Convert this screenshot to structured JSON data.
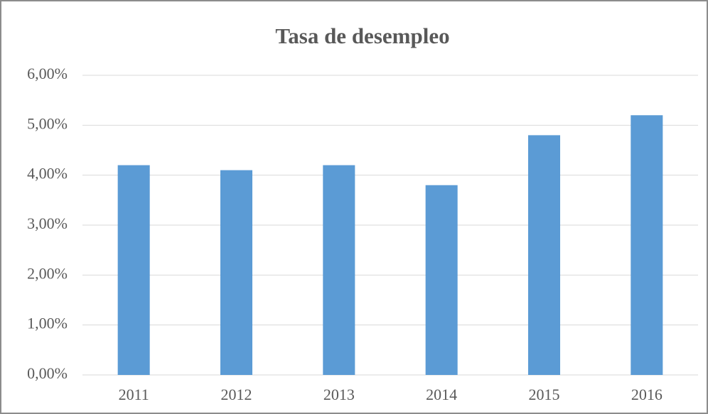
{
  "chart_data": {
    "type": "bar",
    "title": "Tasa de desempleo",
    "categories": [
      "2011",
      "2012",
      "2013",
      "2014",
      "2015",
      "2016"
    ],
    "values": [
      4.2,
      4.1,
      4.2,
      3.8,
      4.8,
      5.2
    ],
    "color": "#5b9bd5",
    "ylim": [
      0,
      6
    ],
    "yticks": [
      {
        "value": 0,
        "label": "0,00%"
      },
      {
        "value": 1,
        "label": "1,00%"
      },
      {
        "value": 2,
        "label": "2,00%"
      },
      {
        "value": 3,
        "label": "3,00%"
      },
      {
        "value": 4,
        "label": "4,00%"
      },
      {
        "value": 5,
        "label": "5,00%"
      },
      {
        "value": 6,
        "label": "6,00%"
      }
    ],
    "grid": true
  }
}
